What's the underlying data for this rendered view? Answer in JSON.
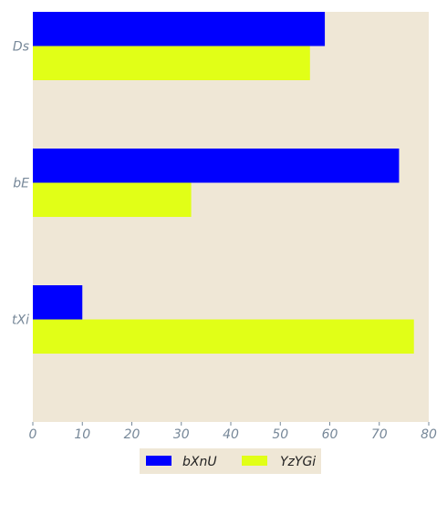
{
  "chart_data": {
    "type": "bar",
    "orientation": "horizontal",
    "categories": [
      "Ds",
      "bE",
      "tXi"
    ],
    "series": [
      {
        "name": "bXnU",
        "values": [
          59,
          74,
          10
        ]
      },
      {
        "name": "YzYGi",
        "values": [
          56,
          32,
          77
        ]
      }
    ],
    "x_ticks": [
      0,
      10,
      20,
      30,
      40,
      50,
      60,
      70,
      80
    ],
    "xlim": [
      0,
      80
    ],
    "title": "",
    "xlabel": "",
    "ylabel": "",
    "grid": false,
    "legend_placement": "bottom-center",
    "colors": {
      "series": [
        "#0000ff",
        "#e1ff17"
      ],
      "plot_background": "#efe7d6",
      "legend_background": "#efe7d6",
      "tick_text": "#778899"
    }
  }
}
